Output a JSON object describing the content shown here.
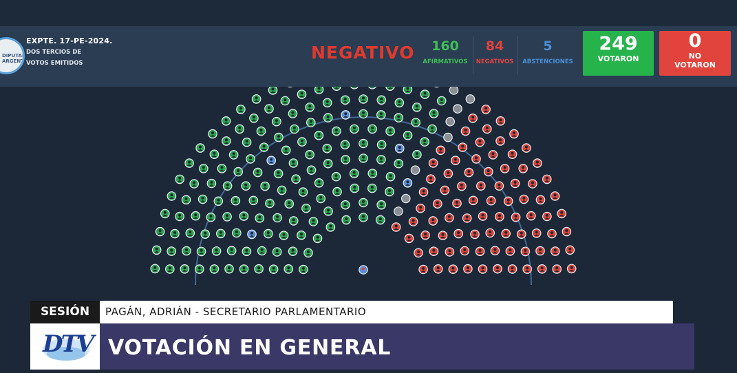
{
  "header": {
    "logo_text": "DIPUTADOS ARGENTINA",
    "expte": "EXPTE. 17-PE-2024.",
    "sub_line1": "DOS TERCIOS DE",
    "sub_line2": "VOTOS EMITIDOS",
    "result": "NEGATIVO"
  },
  "stats": {
    "afirmativos": {
      "value": "160",
      "label": "AFIRMATIVOS",
      "color": "#3fbf55"
    },
    "negativos": {
      "value": "84",
      "label": "NEGATIVOS",
      "color": "#e0443c"
    },
    "abstenciones": {
      "value": "5",
      "label": "ABSTENCIONES",
      "color": "#4a90d9"
    }
  },
  "votaron": {
    "value": "249",
    "label": "VOTARON",
    "color": "#27b34c"
  },
  "no_votaron": {
    "value": "0",
    "label_line1": "NO",
    "label_line2": "VOTARON",
    "color": "#e0443c"
  },
  "chamber_seats": {
    "afirmativo": 160,
    "negativo": 84,
    "abstencion": 5,
    "ausente": 8,
    "colors": {
      "afirmativo": "#2ea44f",
      "negativo": "#d9453b",
      "abstencion": "#5b8fd6",
      "ausente": "#8a8f96",
      "arc": "#3f6a9a"
    }
  },
  "lower_third": {
    "section": "SESIÓN",
    "speaker": "PAGÁN, ADRIÁN - SECRETARIO PARLAMENTARIO",
    "title": "VOTACIÓN EN GENERAL",
    "channel": "DTV"
  }
}
